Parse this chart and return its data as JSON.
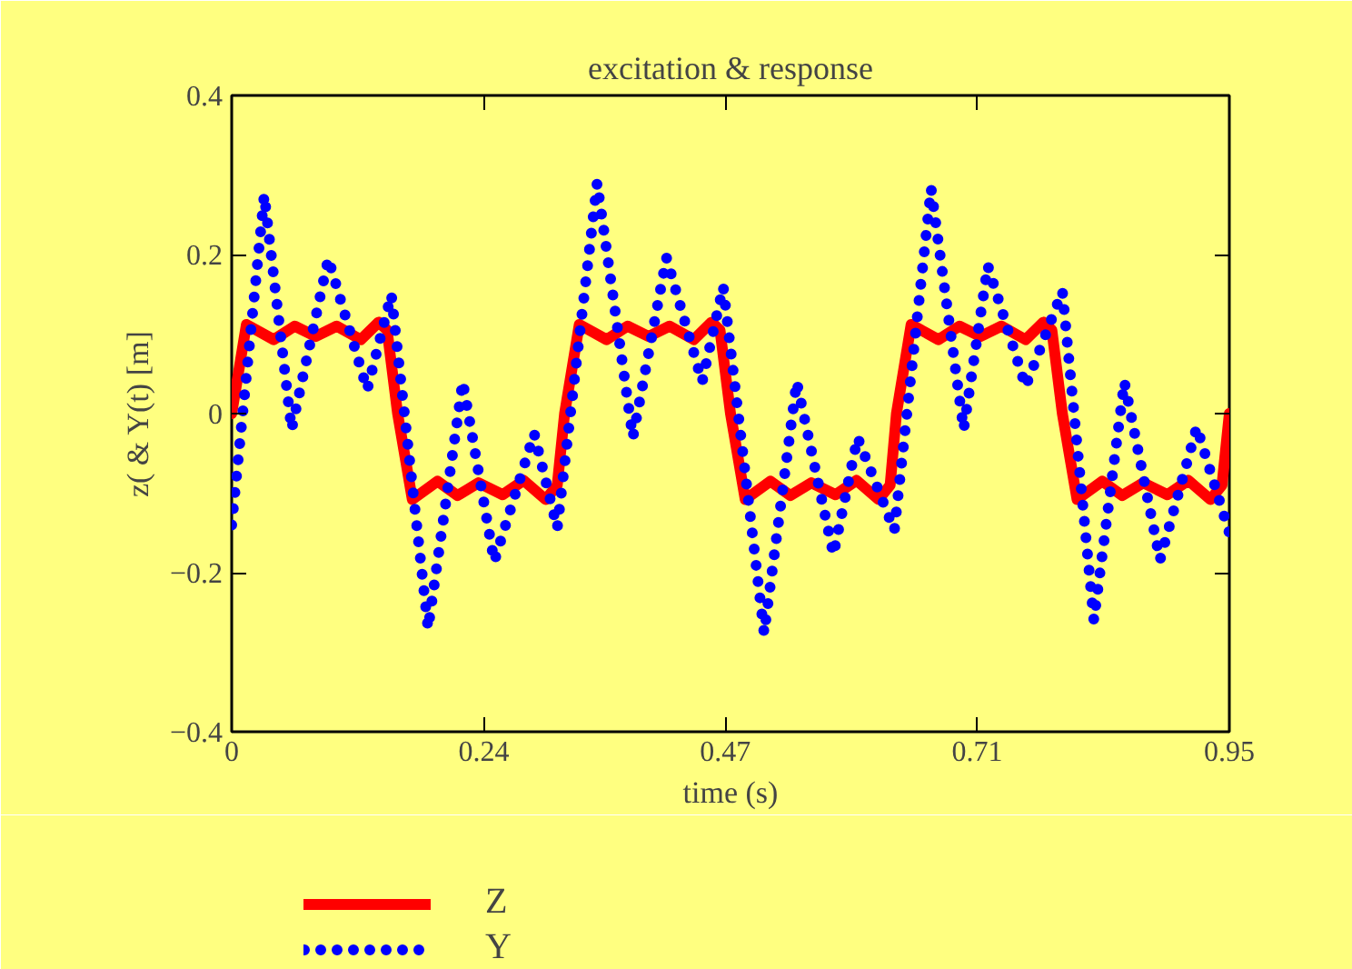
{
  "chart_data": {
    "type": "line",
    "title": "excitation & response",
    "xlabel": "time (s)",
    "ylabel": "z( & Y(t) [m]",
    "xlim": [
      0,
      0.95
    ],
    "xticks": [
      0,
      0.24,
      0.47,
      0.71,
      0.95
    ],
    "ylim": [
      -0.4,
      0.4
    ],
    "yticks": [
      0.4,
      0.2,
      0,
      {
        "value": -0.2,
        "label": "−0.2"
      },
      {
        "value": -0.4,
        "label": "−0.4"
      }
    ],
    "grid": false,
    "legend": "bottom",
    "series": [
      {
        "name": "Z",
        "color": "#ff0000",
        "line_style": "solid",
        "x": [
          0,
          0.014,
          0.04,
          0.06,
          0.08,
          0.1,
          0.123,
          0.14,
          0.148,
          0.158,
          0.172,
          0.196,
          0.215,
          0.235,
          0.258,
          0.278,
          0.299,
          0.31,
          0.317,
          0.331,
          0.357,
          0.377,
          0.397,
          0.417,
          0.44,
          0.457,
          0.465,
          0.475,
          0.489,
          0.513,
          0.532,
          0.552,
          0.575,
          0.595,
          0.616,
          0.627,
          0.633,
          0.647,
          0.673,
          0.693,
          0.713,
          0.733,
          0.756,
          0.773,
          0.781,
          0.791,
          0.805,
          0.829,
          0.848,
          0.868,
          0.891,
          0.911,
          0.932,
          0.943,
          0.95
        ],
        "values": [
          0,
          0.112,
          0.093,
          0.11,
          0.097,
          0.11,
          0.093,
          0.115,
          0.105,
          0,
          -0.108,
          -0.085,
          -0.103,
          -0.087,
          -0.102,
          -0.084,
          -0.108,
          -0.09,
          0,
          0.112,
          0.093,
          0.11,
          0.097,
          0.11,
          0.093,
          0.115,
          0.105,
          0,
          -0.108,
          -0.085,
          -0.103,
          -0.087,
          -0.102,
          -0.084,
          -0.108,
          -0.09,
          0,
          0.112,
          0.093,
          0.11,
          0.097,
          0.11,
          0.093,
          0.115,
          0.105,
          0,
          -0.108,
          -0.085,
          -0.103,
          -0.087,
          -0.102,
          -0.084,
          -0.108,
          -0.09,
          0
        ]
      },
      {
        "name": "Y",
        "color": "#0000ff",
        "line_style": "dotted",
        "x": [
          0,
          0.031,
          0.057,
          0.092,
          0.129,
          0.152,
          0.187,
          0.22,
          0.25,
          0.288,
          0.31,
          0.348,
          0.382,
          0.414,
          0.448,
          0.468,
          0.507,
          0.538,
          0.573,
          0.596,
          0.631,
          0.666,
          0.697,
          0.72,
          0.756,
          0.791,
          0.821,
          0.85,
          0.884,
          0.919,
          0.95
        ],
        "values": [
          -0.14,
          0.275,
          -0.02,
          0.195,
          0.03,
          0.15,
          -0.27,
          0.04,
          -0.186,
          -0.025,
          -0.144,
          0.29,
          -0.03,
          0.196,
          0.04,
          0.16,
          -0.276,
          0.04,
          -0.177,
          -0.03,
          -0.147,
          0.283,
          -0.02,
          0.186,
          0.034,
          0.154,
          -0.26,
          0.04,
          -0.184,
          -0.017,
          -0.15
        ]
      }
    ]
  }
}
